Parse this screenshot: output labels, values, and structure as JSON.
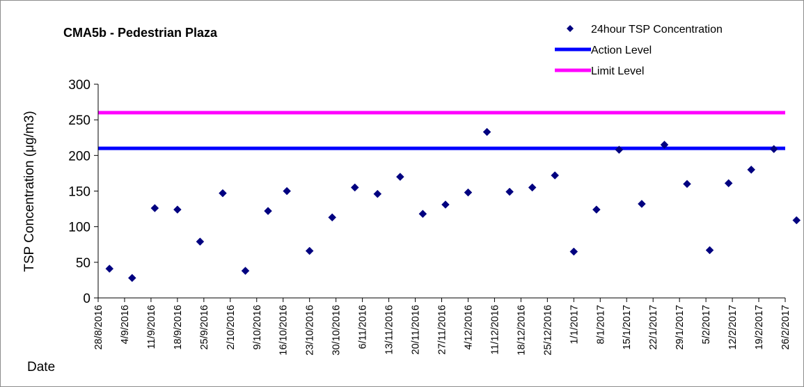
{
  "chart_data": {
    "type": "scatter",
    "title": "CMA5b - Pedestrian Plaza",
    "ylabel": "TSP Concentration (μg/m3)",
    "xlabel": "Date",
    "ylim": [
      0,
      300
    ],
    "yticks": [
      0,
      50,
      100,
      150,
      200,
      250,
      300
    ],
    "xlim": [
      "2016-08-28",
      "2017-02-26"
    ],
    "x_tick_labels": [
      "28/8/2016",
      "4/9/2016",
      "11/9/2016",
      "18/9/2016",
      "25/9/2016",
      "2/10/2016",
      "9/10/2016",
      "16/10/2016",
      "23/10/2016",
      "30/10/2016",
      "6/11/2016",
      "13/11/2016",
      "20/11/2016",
      "27/11/2016",
      "4/12/2016",
      "11/12/2016",
      "18/12/2016",
      "25/12/2016",
      "1/1/2017",
      "8/1/2017",
      "15/1/2017",
      "22/1/2017",
      "29/1/2017",
      "5/2/2017",
      "12/2/2017",
      "19/2/2017",
      "26/2/2017"
    ],
    "legend": [
      {
        "label": "24hour TSP Concentration",
        "marker": "diamond",
        "color": "#000080"
      },
      {
        "label": "Action Level",
        "marker": "line",
        "color": "#0000ff"
      },
      {
        "label": "Limit Level",
        "marker": "line",
        "color": "#ff00ff"
      }
    ],
    "legend_position": "top-right",
    "reference_lines": [
      {
        "name": "Action Level",
        "y": 210,
        "color": "#0000ff"
      },
      {
        "name": "Limit Level",
        "y": 260,
        "color": "#ff00ff"
      }
    ],
    "series": [
      {
        "name": "24hour TSP Concentration",
        "color": "#000080",
        "marker": "diamond",
        "points": [
          {
            "x": "2016-08-31",
            "y": 41
          },
          {
            "x": "2016-09-06",
            "y": 28
          },
          {
            "x": "2016-09-12",
            "y": 126
          },
          {
            "x": "2016-09-18",
            "y": 124
          },
          {
            "x": "2016-09-24",
            "y": 79
          },
          {
            "x": "2016-09-30",
            "y": 147
          },
          {
            "x": "2016-10-06",
            "y": 38
          },
          {
            "x": "2016-10-12",
            "y": 122
          },
          {
            "x": "2016-10-17",
            "y": 150
          },
          {
            "x": "2016-10-23",
            "y": 66
          },
          {
            "x": "2016-10-29",
            "y": 113
          },
          {
            "x": "2016-11-04",
            "y": 155
          },
          {
            "x": "2016-11-10",
            "y": 146
          },
          {
            "x": "2016-11-16",
            "y": 170
          },
          {
            "x": "2016-11-22",
            "y": 118
          },
          {
            "x": "2016-11-28",
            "y": 131
          },
          {
            "x": "2016-12-04",
            "y": 148
          },
          {
            "x": "2016-12-09",
            "y": 233
          },
          {
            "x": "2016-12-15",
            "y": 149
          },
          {
            "x": "2016-12-21",
            "y": 155
          },
          {
            "x": "2016-12-27",
            "y": 172
          },
          {
            "x": "2017-01-01",
            "y": 65
          },
          {
            "x": "2017-01-07",
            "y": 124
          },
          {
            "x": "2017-01-13",
            "y": 208
          },
          {
            "x": "2017-01-19",
            "y": 132
          },
          {
            "x": "2017-01-25",
            "y": 215
          },
          {
            "x": "2017-01-31",
            "y": 160
          },
          {
            "x": "2017-02-06",
            "y": 67
          },
          {
            "x": "2017-02-11",
            "y": 161
          },
          {
            "x": "2017-02-17",
            "y": 180
          },
          {
            "x": "2017-02-23",
            "y": 209
          },
          {
            "x": "2017-03-01",
            "y": 109
          }
        ]
      }
    ]
  }
}
